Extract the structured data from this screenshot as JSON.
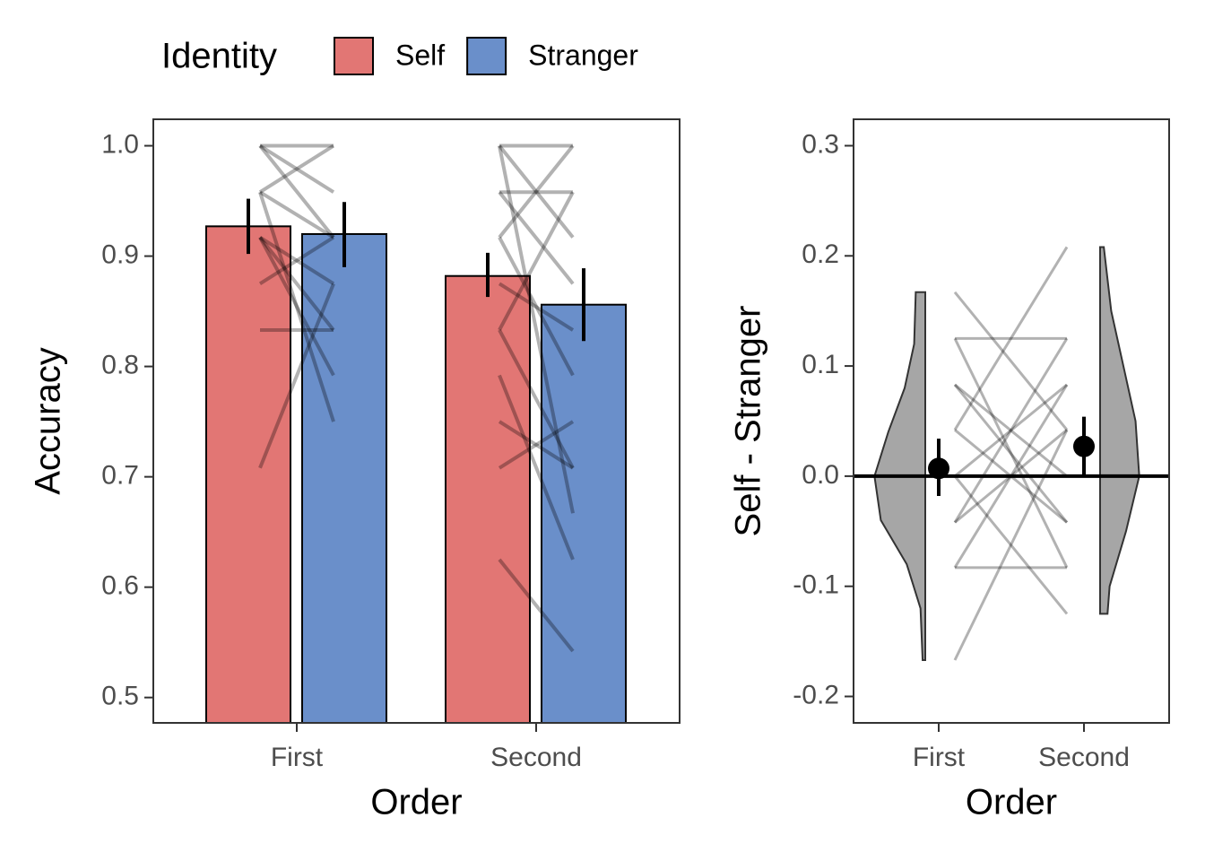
{
  "chart_data": [
    {
      "type": "bar",
      "x_label": "Order",
      "y_label": "Accuracy",
      "legend_title": "Identity",
      "legend_position": "top",
      "categories": [
        "First",
        "Second"
      ],
      "series": [
        {
          "name": "Self",
          "color": "#e27674",
          "values": [
            0.927,
            0.882
          ],
          "lower": [
            0.902,
            0.863
          ],
          "upper": [
            0.952,
            0.903
          ]
        },
        {
          "name": "Stranger",
          "color": "#6a8fca",
          "values": [
            0.92,
            0.856
          ],
          "lower": [
            0.89,
            0.823
          ],
          "upper": [
            0.949,
            0.889
          ]
        }
      ],
      "pairs": [
        [
          [
            1.0,
            1.0
          ],
          [
            1.0,
            0.958
          ],
          [
            0.958,
            1.0
          ],
          [
            0.958,
            0.917
          ],
          [
            0.917,
            0.833
          ],
          [
            0.917,
            0.875
          ],
          [
            0.875,
            0.917
          ],
          [
            0.833,
            0.833
          ],
          [
            0.708,
            0.875
          ],
          [
            0.958,
            0.75
          ],
          [
            0.917,
            0.792
          ],
          [
            1.0,
            0.917
          ]
        ],
        [
          [
            1.0,
            0.917
          ],
          [
            1.0,
            1.0
          ],
          [
            0.958,
            0.958
          ],
          [
            0.958,
            0.875
          ],
          [
            0.917,
            0.792
          ],
          [
            0.875,
            0.833
          ],
          [
            0.833,
            0.708
          ],
          [
            0.792,
            0.625
          ],
          [
            0.708,
            0.75
          ],
          [
            0.625,
            0.542
          ],
          [
            1.0,
            0.667
          ],
          [
            0.833,
            0.958
          ],
          [
            0.75,
            0.708
          ],
          [
            0.917,
            1.0
          ]
        ]
      ],
      "ylim": [
        0.477,
        1.024
      ],
      "yticks": [
        0.5,
        0.6,
        0.7,
        0.8,
        0.9,
        {
          "value": 1.0,
          "label": "1.0"
        }
      ]
    },
    {
      "type": "pointrange",
      "x_label": "Order",
      "y_label": "Self - Stranger",
      "categories": [
        "First",
        "Second"
      ],
      "values": [
        0.007,
        0.027
      ],
      "lower": [
        -0.018,
        0.0
      ],
      "upper": [
        0.034,
        0.054
      ],
      "reference_line": 0,
      "pairs": [
        [
          0.167,
          0.042
        ],
        [
          0.125,
          0.125
        ],
        [
          0.125,
          -0.083
        ],
        [
          0.083,
          0.0
        ],
        [
          0.042,
          0.208
        ],
        [
          0.042,
          -0.042
        ],
        [
          0.0,
          0.083
        ],
        [
          0.0,
          -0.125
        ],
        [
          -0.042,
          0.042
        ],
        [
          -0.042,
          0.125
        ],
        [
          -0.083,
          0.083
        ],
        [
          -0.083,
          -0.083
        ],
        [
          -0.167,
          0.042
        ],
        [
          0.0,
          0.0
        ],
        [
          0.083,
          -0.042
        ]
      ],
      "violins": [
        {
          "y": [
            0.167,
            0.12,
            0.08,
            0.04,
            0.0,
            -0.04,
            -0.08,
            -0.12,
            -0.167
          ],
          "density": [
            0.18,
            0.21,
            0.39,
            0.7,
            0.96,
            0.84,
            0.35,
            0.09,
            0.05
          ]
        },
        {
          "y": [
            0.208,
            0.15,
            0.1,
            0.05,
            0.0,
            -0.05,
            -0.1,
            -0.125
          ],
          "density": [
            0.07,
            0.21,
            0.44,
            0.67,
            0.74,
            0.49,
            0.18,
            0.14
          ]
        }
      ],
      "violin_color": "#a6a6a6",
      "ylim": [
        -0.224,
        0.324
      ],
      "yticks": [
        -0.2,
        -0.1,
        {
          "value": 0,
          "label": "0.0"
        },
        0.1,
        0.2,
        0.3
      ]
    }
  ]
}
